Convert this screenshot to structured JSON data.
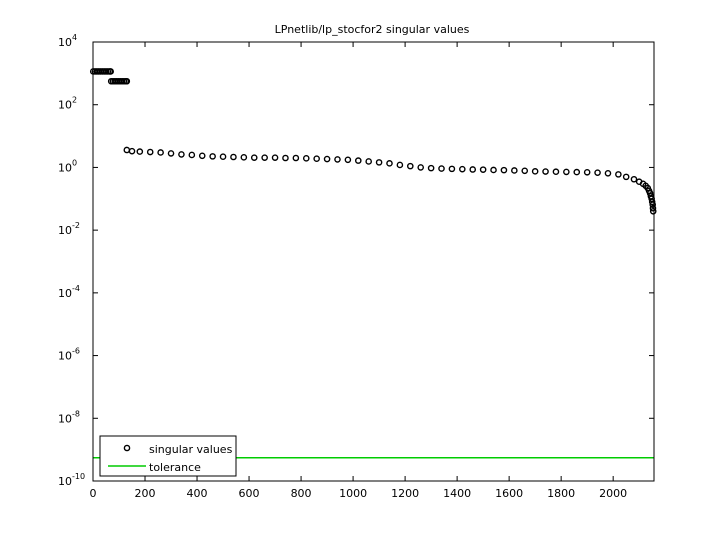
{
  "chart_data": {
    "type": "scatter",
    "title": "LPnetlib/lp_stocfor2 singular values",
    "xlabel": "",
    "ylabel": "",
    "xlim": [
      0,
      2157
    ],
    "ylim": [
      1e-10,
      10000
    ],
    "yscale": "log",
    "x_ticks": [
      0,
      200,
      400,
      600,
      800,
      1000,
      1200,
      1400,
      1600,
      1800,
      2000
    ],
    "y_ticks": [
      {
        "value": 1e-10,
        "base": "10",
        "exp": "-10"
      },
      {
        "value": 1e-08,
        "base": "10",
        "exp": "-8"
      },
      {
        "value": 1e-06,
        "base": "10",
        "exp": "-6"
      },
      {
        "value": 0.0001,
        "base": "10",
        "exp": "-4"
      },
      {
        "value": 0.01,
        "base": "10",
        "exp": "-2"
      },
      {
        "value": 1,
        "base": "10",
        "exp": "0"
      },
      {
        "value": 100,
        "base": "10",
        "exp": "2"
      },
      {
        "value": 10000,
        "base": "10",
        "exp": "4"
      }
    ],
    "grid": false,
    "legend_position": "bottom-left",
    "series": [
      {
        "name": "singular values",
        "marker": "circle",
        "color": "#000000",
        "points": [
          [
            1,
            1150
          ],
          [
            8,
            1150
          ],
          [
            15,
            1150
          ],
          [
            22,
            1150
          ],
          [
            29,
            1150
          ],
          [
            36,
            1150
          ],
          [
            43,
            1150
          ],
          [
            50,
            1150
          ],
          [
            57,
            1150
          ],
          [
            64,
            1150
          ],
          [
            68,
            1150
          ],
          [
            70,
            560
          ],
          [
            77,
            560
          ],
          [
            84,
            560
          ],
          [
            91,
            560
          ],
          [
            98,
            560
          ],
          [
            105,
            560
          ],
          [
            112,
            560
          ],
          [
            119,
            560
          ],
          [
            126,
            560
          ],
          [
            130,
            560
          ],
          [
            130,
            3.6
          ],
          [
            150,
            3.3
          ],
          [
            180,
            3.2
          ],
          [
            220,
            3.1
          ],
          [
            260,
            3.0
          ],
          [
            300,
            2.8
          ],
          [
            340,
            2.6
          ],
          [
            380,
            2.5
          ],
          [
            420,
            2.35
          ],
          [
            460,
            2.25
          ],
          [
            500,
            2.2
          ],
          [
            540,
            2.15
          ],
          [
            580,
            2.1
          ],
          [
            620,
            2.05
          ],
          [
            660,
            2.05
          ],
          [
            700,
            2.05
          ],
          [
            740,
            2.0
          ],
          [
            780,
            2.0
          ],
          [
            820,
            1.95
          ],
          [
            860,
            1.9
          ],
          [
            900,
            1.85
          ],
          [
            940,
            1.8
          ],
          [
            980,
            1.75
          ],
          [
            1020,
            1.65
          ],
          [
            1060,
            1.55
          ],
          [
            1100,
            1.45
          ],
          [
            1140,
            1.35
          ],
          [
            1180,
            1.2
          ],
          [
            1220,
            1.1
          ],
          [
            1260,
            1.0
          ],
          [
            1300,
            0.95
          ],
          [
            1340,
            0.92
          ],
          [
            1380,
            0.9
          ],
          [
            1420,
            0.88
          ],
          [
            1460,
            0.86
          ],
          [
            1500,
            0.85
          ],
          [
            1540,
            0.83
          ],
          [
            1580,
            0.82
          ],
          [
            1620,
            0.8
          ],
          [
            1660,
            0.78
          ],
          [
            1700,
            0.75
          ],
          [
            1740,
            0.74
          ],
          [
            1780,
            0.73
          ],
          [
            1820,
            0.72
          ],
          [
            1860,
            0.71
          ],
          [
            1900,
            0.7
          ],
          [
            1940,
            0.68
          ],
          [
            1980,
            0.65
          ],
          [
            2020,
            0.6
          ],
          [
            2050,
            0.5
          ],
          [
            2080,
            0.42
          ],
          [
            2100,
            0.35
          ],
          [
            2115,
            0.3
          ],
          [
            2125,
            0.26
          ],
          [
            2133,
            0.22
          ],
          [
            2138,
            0.18
          ],
          [
            2142,
            0.15
          ],
          [
            2145,
            0.12
          ],
          [
            2148,
            0.1
          ],
          [
            2150,
            0.08
          ],
          [
            2152,
            0.065
          ],
          [
            2153,
            0.05
          ],
          [
            2154,
            0.04
          ]
        ]
      },
      {
        "name": "tolerance",
        "line": true,
        "color": "#00cc00",
        "value": 5.5e-10,
        "x": [
          0,
          2157
        ]
      }
    ]
  }
}
